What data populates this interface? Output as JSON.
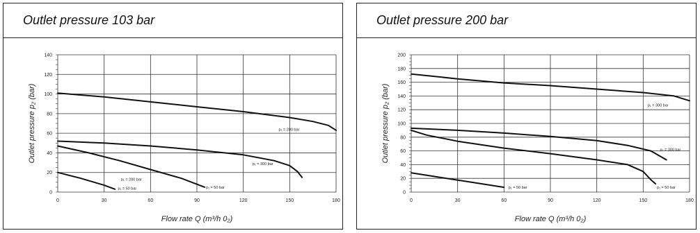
{
  "panels": [
    {
      "title": "Outlet pressure 103 bar",
      "chart_data": {
        "type": "line",
        "xlabel": "Flow rate Q (m³/h 0₂)",
        "ylabel": "Outlet pressure p₂ (bar)",
        "xlim": [
          0,
          180
        ],
        "ylim": [
          0,
          140
        ],
        "xticks": [
          0,
          30,
          60,
          90,
          120,
          150,
          180
        ],
        "yticks": [
          0,
          20,
          40,
          60,
          80,
          100,
          120,
          140
        ],
        "grid": true,
        "series": [
          {
            "name": "p₁ = 200 bar",
            "points": [
              [
                0,
                101
              ],
              [
                30,
                97
              ],
              [
                60,
                92
              ],
              [
                90,
                87
              ],
              [
                120,
                82
              ],
              [
                150,
                76
              ],
              [
                165,
                72
              ],
              [
                175,
                68
              ],
              [
                180,
                63
              ]
            ],
            "label_at": [
              142,
              64
            ]
          },
          {
            "name": "p₁ = 300 bar",
            "points": [
              [
                0,
                52
              ],
              [
                30,
                50
              ],
              [
                60,
                47
              ],
              [
                90,
                43
              ],
              [
                120,
                38
              ],
              [
                140,
                32
              ],
              [
                150,
                27
              ],
              [
                155,
                21
              ],
              [
                158,
                15
              ]
            ],
            "label_at": [
              125,
              29
            ]
          },
          {
            "name": "p₁ = 50 bar",
            "points": [
              [
                0,
                47
              ],
              [
                20,
                40
              ],
              [
                40,
                32
              ],
              [
                60,
                23
              ],
              [
                80,
                14
              ],
              [
                95,
                5
              ]
            ],
            "label_at": [
              95,
              5
            ]
          },
          {
            "name": "p₁ = 200 bar",
            "points": [
              [
                0,
                20
              ],
              [
                15,
                14
              ],
              [
                30,
                7
              ],
              [
                37,
                3
              ]
            ],
            "label_at": [
              40,
              13
            ]
          },
          {
            "name": "p₁ = 50 bar",
            "points": [],
            "label_at": [
              38,
              4
            ]
          }
        ]
      }
    },
    {
      "title": "Outlet pressure 200 bar",
      "chart_data": {
        "type": "line",
        "xlabel": "Flow rate Q (m³/h 0₂)",
        "ylabel": "Outlet pressure p₂ (bar)",
        "xlim": [
          0,
          180
        ],
        "ylim": [
          0,
          200
        ],
        "xticks": [
          0,
          30,
          60,
          90,
          120,
          150,
          180
        ],
        "yticks": [
          0,
          20,
          40,
          60,
          80,
          100,
          120,
          140,
          160,
          180,
          200
        ],
        "grid": true,
        "series": [
          {
            "name": "p₁ = 300 bar",
            "points": [
              [
                0,
                172
              ],
              [
                30,
                165
              ],
              [
                60,
                159
              ],
              [
                90,
                155
              ],
              [
                120,
                150
              ],
              [
                150,
                145
              ],
              [
                170,
                140
              ],
              [
                180,
                133
              ]
            ],
            "label_at": [
              152,
              127
            ]
          },
          {
            "name": "p₁ = 300 bar",
            "points": [
              [
                0,
                93
              ],
              [
                30,
                90
              ],
              [
                60,
                86
              ],
              [
                90,
                81
              ],
              [
                120,
                75
              ],
              [
                140,
                68
              ],
              [
                155,
                60
              ],
              [
                165,
                47
              ]
            ],
            "label_at": [
              160,
              62
            ]
          },
          {
            "name": "p₁ = 50 bar",
            "points": [
              [
                0,
                90
              ],
              [
                10,
                83
              ],
              [
                30,
                74
              ],
              [
                60,
                64
              ],
              [
                90,
                56
              ],
              [
                120,
                47
              ],
              [
                140,
                40
              ],
              [
                150,
                30
              ],
              [
                155,
                18
              ],
              [
                158,
                12
              ]
            ],
            "label_at": [
              158,
              7
            ]
          },
          {
            "name": "p₁ = 50 bar",
            "points": [
              [
                0,
                28
              ],
              [
                20,
                21
              ],
              [
                40,
                14
              ],
              [
                60,
                7
              ]
            ],
            "label_at": [
              62,
              7
            ]
          }
        ]
      }
    }
  ]
}
